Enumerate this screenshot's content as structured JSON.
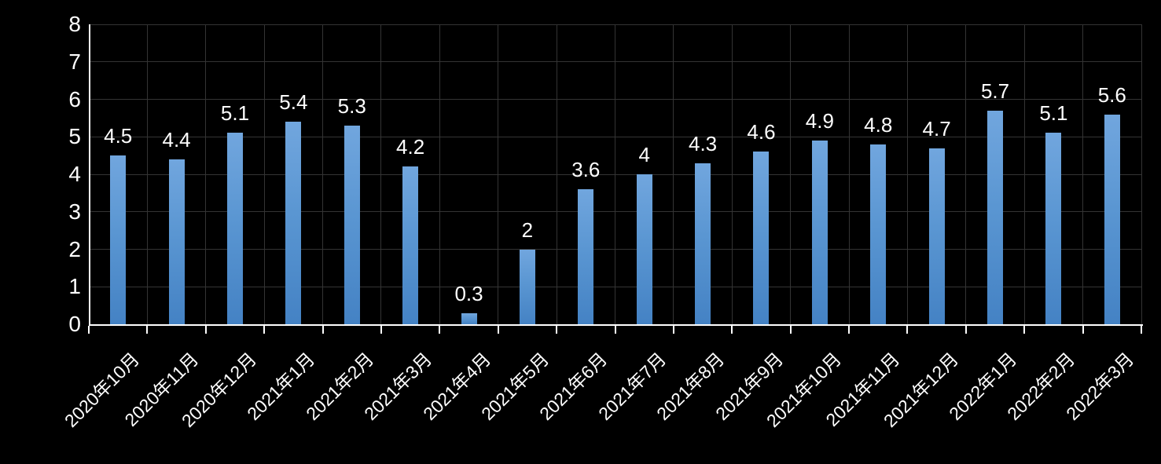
{
  "chart": {
    "background_color": "#000000",
    "axis_color": "#FFFFFF",
    "grid_color": "#343434",
    "text_color": "#FFFFFF",
    "bar_color_top": "#71A6DE",
    "bar_color_bottom": "#4482C4"
  },
  "chart_data": {
    "type": "bar",
    "title": "",
    "xlabel": "",
    "ylabel": "",
    "categories": [
      "2020年10月",
      "2020年11月",
      "2020年12月",
      "2021年1月",
      "2021年2月",
      "2021年3月",
      "2021年4月",
      "2021年5月",
      "2021年6月",
      "2021年7月",
      "2021年8月",
      "2021年9月",
      "2021年10月",
      "2021年11月",
      "2021年12月",
      "2022年1月",
      "2022年2月",
      "2022年3月"
    ],
    "values": [
      4.5,
      4.4,
      5.1,
      5.4,
      5.3,
      4.2,
      0.3,
      2,
      3.6,
      4,
      4.3,
      4.6,
      4.9,
      4.8,
      4.7,
      5.7,
      5.1,
      5.6
    ],
    "data_labels": [
      "4.5",
      "4.4",
      "5.1",
      "5.4",
      "5.3",
      "4.2",
      "0.3",
      "2",
      "3.6",
      "4",
      "4.3",
      "4.6",
      "4.9",
      "4.8",
      "4.7",
      "5.7",
      "5.1",
      "5.6"
    ],
    "yticks": [
      0,
      1,
      2,
      3,
      4,
      5,
      6,
      7,
      8
    ],
    "ylim": [
      0,
      8
    ],
    "grid": "on",
    "legend": "none",
    "x_label_rotation": -45,
    "data_label_position": "outside-end"
  }
}
